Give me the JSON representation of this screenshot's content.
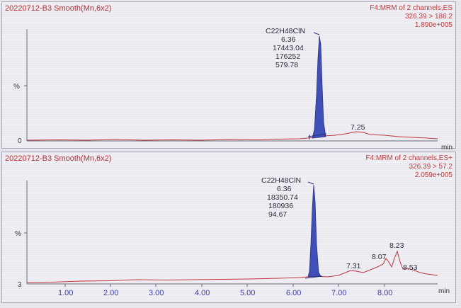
{
  "panels": [
    {
      "title": "20220712-B3 Smooth(Mn,6x2)",
      "info": [
        "F4:MRM of 2 channels,ES",
        "326.39 > 186.2",
        "1.890e+005"
      ],
      "y_axis_label": "%",
      "y_baseline_label": "0",
      "x_unit": "min",
      "main_peak": {
        "compound": "C22H48ClN",
        "rt": "6.36",
        "area": "17443.04",
        "height": "176252",
        "sn": "579.78"
      },
      "minor_peak_labels": [
        "7.25"
      ]
    },
    {
      "title": "20220712-B3 Smooth(Mn,6x2)",
      "info": [
        "F4:MRM of 2 channels,ES+",
        "326.39 > 57.2",
        "2.059e+005"
      ],
      "y_axis_label": "%",
      "y_baseline_label": "3",
      "x_unit": "min",
      "main_peak": {
        "compound": "C22H48ClN",
        "rt": "6.36",
        "area": "18350.74",
        "height": "180936",
        "sn": "94.67"
      },
      "minor_peak_labels": [
        "7.31",
        "8.07",
        "8.23",
        "8.53"
      ]
    }
  ],
  "x_axis_ticks": [
    "1.00",
    "2.00",
    "3.00",
    "4.00",
    "5.00",
    "6.00",
    "7.00",
    "8.00"
  ],
  "colors": {
    "trace": "#c0343c",
    "peak_fill": "#3e4fb8",
    "axis": "#5a5a6a",
    "label": "#2a2a3a"
  }
}
